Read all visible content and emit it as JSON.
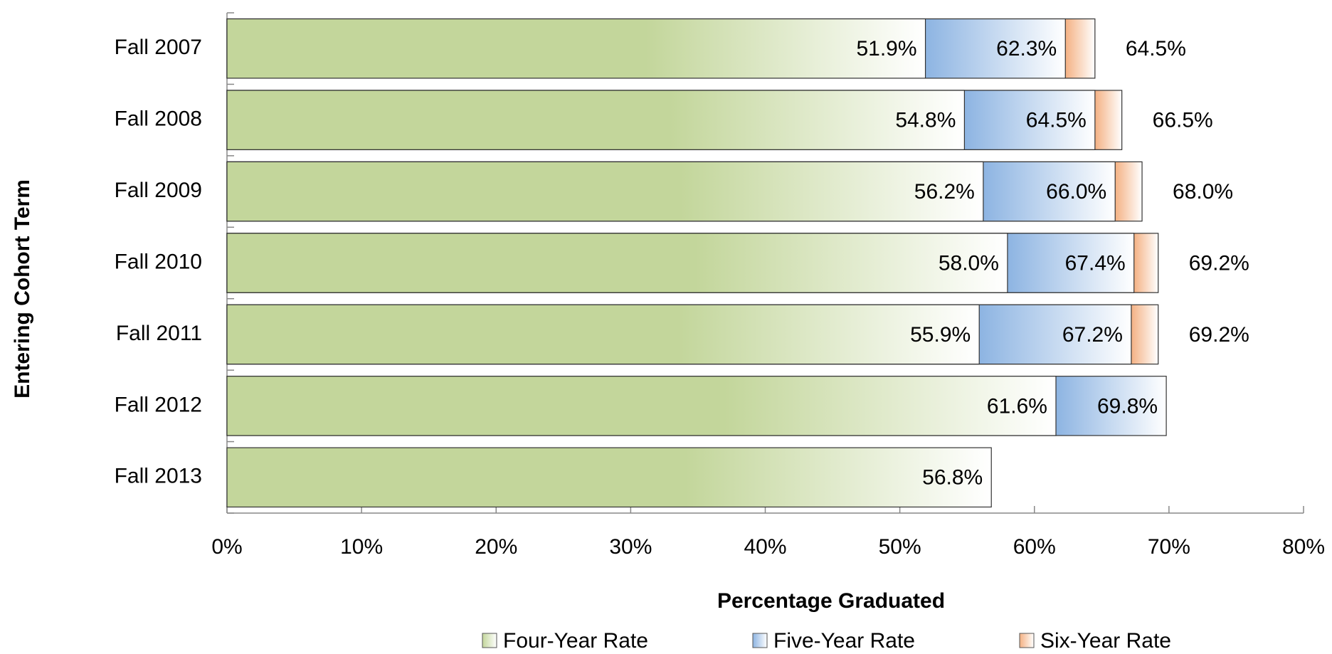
{
  "chart_data": {
    "type": "bar",
    "orientation": "horizontal",
    "overlap": true,
    "x_label": "Percentage Graduated",
    "y_label": "Entering Cohort Term",
    "categories": [
      "Fall 2007",
      "Fall 2008",
      "Fall 2009",
      "Fall 2010",
      "Fall 2011",
      "Fall 2012",
      "Fall 2013"
    ],
    "series": [
      {
        "name": "Four-Year Rate",
        "color": "#c3d69b",
        "values": [
          51.9,
          54.8,
          56.2,
          58.0,
          55.9,
          61.6,
          56.8
        ],
        "value_labels": [
          "51.9%",
          "54.8%",
          "56.2%",
          "58.0%",
          "55.9%",
          "61.6%",
          "56.8%"
        ]
      },
      {
        "name": "Five-Year Rate",
        "color": "#8db4e2",
        "values": [
          62.3,
          64.5,
          66.0,
          67.4,
          67.2,
          69.8,
          null
        ],
        "value_labels": [
          "62.3%",
          "64.5%",
          "66.0%",
          "67.4%",
          "67.2%",
          "69.8%",
          null
        ]
      },
      {
        "name": "Six-Year Rate",
        "color": "#f4b183",
        "values": [
          64.5,
          66.5,
          68.0,
          69.2,
          69.2,
          null,
          null
        ],
        "value_labels": [
          "64.5%",
          "66.5%",
          "68.0%",
          "69.2%",
          "69.2%",
          null,
          null
        ]
      }
    ],
    "xlim": [
      0,
      80
    ],
    "xticks": [
      {
        "value": 0,
        "label": "0%"
      },
      {
        "value": 10,
        "label": "10%"
      },
      {
        "value": 20,
        "label": "20%"
      },
      {
        "value": 30,
        "label": "30%"
      },
      {
        "value": 40,
        "label": "40%"
      },
      {
        "value": 50,
        "label": "50%"
      },
      {
        "value": 60,
        "label": "60%"
      },
      {
        "value": 70,
        "label": "70%"
      },
      {
        "value": 80,
        "label": "80%"
      }
    ],
    "legend": "bottom"
  }
}
